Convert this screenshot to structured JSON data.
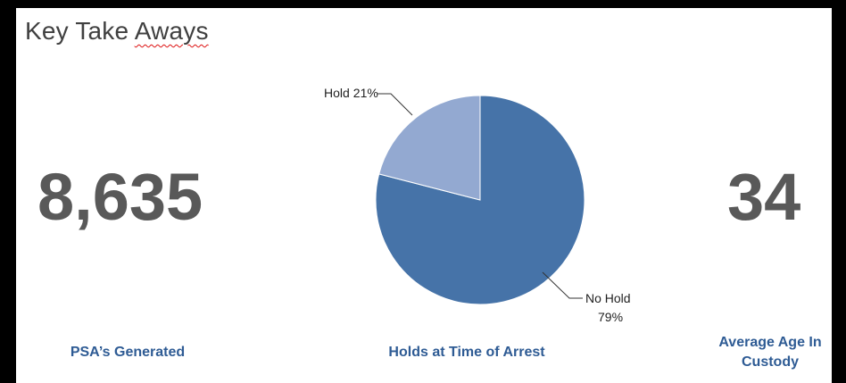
{
  "slide": {
    "title_main": "Key Take ",
    "title_underlined": "Aways"
  },
  "stats": {
    "psa_value": "8,635",
    "psa_caption": "PSA’s Generated",
    "holds_caption": "Holds at Time of Arrest",
    "age_value": "34",
    "age_caption_line1": "Average Age In",
    "age_caption_line2": "Custody"
  },
  "chart_data": {
    "type": "pie",
    "title": "",
    "slices": [
      {
        "label": "No Hold",
        "value": 79,
        "display": "79%",
        "color": "#4673a8"
      },
      {
        "label": "Hold",
        "value": 21,
        "display": "21%",
        "color": "#93a9d1"
      }
    ],
    "colors": {
      "edge": "#ffffff",
      "leader": "#333333"
    }
  }
}
